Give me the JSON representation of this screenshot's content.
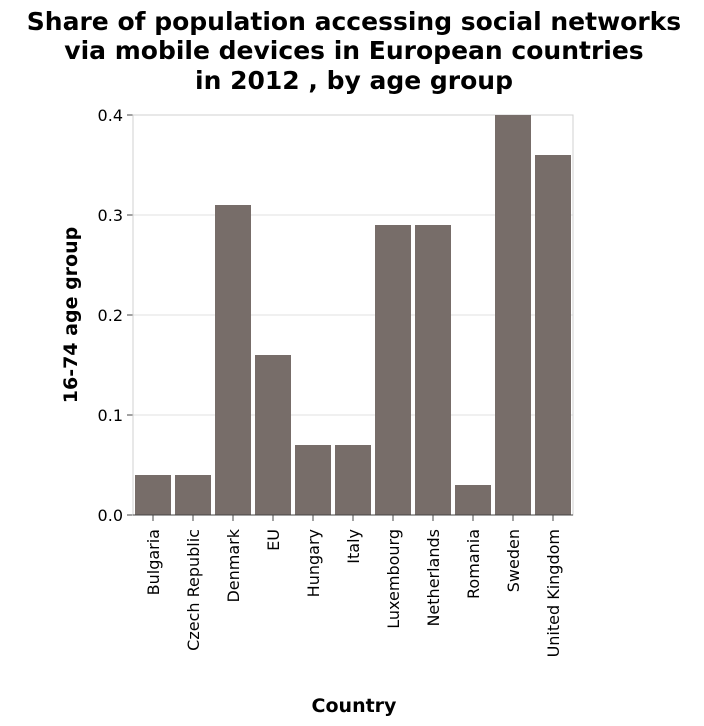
{
  "chart_data": {
    "type": "bar",
    "title": "Share of population accessing social networks via mobile devices in European countries in 2012 , by age group",
    "title_lines": [
      "Share of population accessing social networks",
      "via mobile devices in European countries",
      "in 2012 , by age group"
    ],
    "xlabel": "Country",
    "ylabel": "16-74 age group",
    "categories": [
      "Bulgaria",
      "Czech Republic",
      "Denmark",
      "EU",
      "Hungary",
      "Italy",
      "Luxembourg",
      "Netherlands",
      "Romania",
      "Sweden",
      "United Kingdom"
    ],
    "values": [
      0.04,
      0.04,
      0.31,
      0.16,
      0.07,
      0.07,
      0.29,
      0.29,
      0.03,
      0.4,
      0.36
    ],
    "ylim": [
      0,
      0.4
    ],
    "yticks": [
      "0.0",
      "0.1",
      "0.2",
      "0.3",
      "0.4"
    ],
    "grid": true,
    "bar_color": "#776d69"
  }
}
